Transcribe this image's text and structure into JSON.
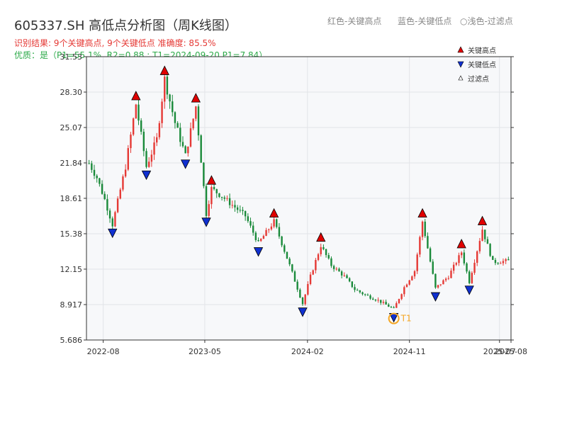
{
  "header": {
    "title": "605337.SH 高低点分析图（周K线图）",
    "hint_red": "红色-关键高点",
    "hint_blue": "蓝色-关键低点",
    "hint_light": "○浅色-过滤点",
    "result_line": "识别结果: 9个关键高点, 9个关键低点  准确度: 85.5%",
    "quality_line": "优质：是（P1=55.1%, R2=0.88 ; T1=2024-09-20 P1=7.84）"
  },
  "legend": {
    "position": "top-right",
    "high": "关键高点",
    "low": "关键低点",
    "filtered": "过滤点"
  },
  "colors": {
    "up": "#e53935",
    "down": "#1a8a3a",
    "high_marker": "#e00000",
    "low_marker": "#1030d0",
    "t1_marker": "#f5a623"
  },
  "chart_data": {
    "type": "candlestick",
    "x_range": [
      "2022-06-17",
      "2025-08-01"
    ],
    "ylim": [
      5.686,
      31.53
    ],
    "y_ticks": [
      "5.686",
      "8.917",
      "12.15",
      "15.38",
      "18.61",
      "21.84",
      "25.07",
      "28.30",
      "31.53"
    ],
    "x_ticks": [
      "2022-08",
      "2023-05",
      "2024-02",
      "2024-11",
      "2025-07",
      "2025-08"
    ],
    "x_tick_dates": [
      "2022-08-01",
      "2023-05-01",
      "2024-02-01",
      "2024-11-01",
      "2025-07-01",
      "2025-08-01"
    ],
    "grid": true,
    "anchors": [
      [
        "2022-06-24",
        21.8
      ],
      [
        "2022-07-15",
        20.5
      ],
      [
        "2022-08-05",
        18.5
      ],
      [
        "2022-08-26",
        16.2
      ],
      [
        "2022-09-30",
        21.5
      ],
      [
        "2022-10-28",
        27.2
      ],
      [
        "2022-11-25",
        21.5
      ],
      [
        "2022-12-23",
        24.0
      ],
      [
        "2023-01-13",
        29.5
      ],
      [
        "2023-02-10",
        25.5
      ],
      [
        "2023-03-10",
        22.5
      ],
      [
        "2023-04-07",
        27.0
      ],
      [
        "2023-05-05",
        17.2
      ],
      [
        "2023-05-19",
        19.5
      ],
      [
        "2023-06-16",
        18.8
      ],
      [
        "2023-07-14",
        18.0
      ],
      [
        "2023-08-18",
        17.0
      ],
      [
        "2023-09-22",
        14.5
      ],
      [
        "2023-11-03",
        16.5
      ],
      [
        "2023-12-15",
        12.5
      ],
      [
        "2024-01-19",
        9.0
      ],
      [
        "2024-02-09",
        11.5
      ],
      [
        "2024-03-08",
        14.3
      ],
      [
        "2024-04-05",
        12.5
      ],
      [
        "2024-05-10",
        11.5
      ],
      [
        "2024-06-07",
        10.3
      ],
      [
        "2024-07-05",
        9.8
      ],
      [
        "2024-08-09",
        9.3
      ],
      [
        "2024-09-20",
        8.5
      ],
      [
        "2024-10-18",
        10.5
      ],
      [
        "2024-11-15",
        12.0
      ],
      [
        "2024-12-06",
        16.5
      ],
      [
        "2025-01-10",
        10.4
      ],
      [
        "2025-02-14",
        11.5
      ],
      [
        "2025-03-21",
        13.7
      ],
      [
        "2025-04-11",
        11.0
      ],
      [
        "2025-05-16",
        15.8
      ],
      [
        "2025-06-13",
        12.8
      ],
      [
        "2025-07-25",
        12.9
      ]
    ],
    "key_highs": [
      [
        "2022-10-28",
        27.2
      ],
      [
        "2023-01-13",
        29.5
      ],
      [
        "2023-04-07",
        27.0
      ],
      [
        "2023-05-19",
        19.5
      ],
      [
        "2023-11-03",
        16.5
      ],
      [
        "2024-03-08",
        14.3
      ],
      [
        "2024-12-06",
        16.5
      ],
      [
        "2025-03-21",
        13.7
      ],
      [
        "2025-05-16",
        15.8
      ]
    ],
    "key_lows": [
      [
        "2022-08-26",
        16.2
      ],
      [
        "2022-11-25",
        21.5
      ],
      [
        "2023-03-10",
        22.5
      ],
      [
        "2023-05-05",
        17.2
      ],
      [
        "2023-09-22",
        14.5
      ],
      [
        "2024-01-19",
        9.0
      ],
      [
        "2024-09-20",
        8.5
      ],
      [
        "2025-01-10",
        10.4
      ],
      [
        "2025-04-11",
        11.0
      ]
    ],
    "t1": {
      "date": "2024-09-20",
      "price": 7.84,
      "label": "T1"
    }
  }
}
